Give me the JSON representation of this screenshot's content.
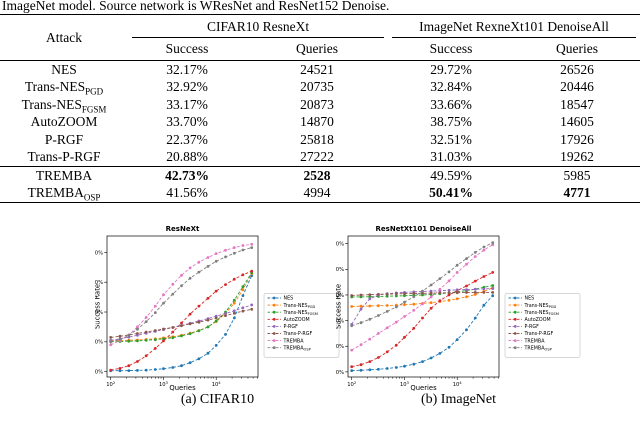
{
  "page": {
    "caption_line": "ImageNet model. Source network is WResNet and ResNet152 Denoise."
  },
  "table": {
    "attack_header": "Attack",
    "groups": [
      {
        "label": "CIFAR10 ResneXt",
        "cols": [
          "Success",
          "Queries"
        ]
      },
      {
        "label": "ImageNet RexneXt101 DenoiseAll",
        "cols": [
          "Success",
          "Queries"
        ]
      }
    ],
    "rows": [
      {
        "attack": "NES",
        "sub": "",
        "values": [
          "32.17%",
          "24521",
          "29.72%",
          "26526"
        ],
        "bold": [],
        "separator": false
      },
      {
        "attack": "Trans-NES",
        "sub": "PGD",
        "values": [
          "32.92%",
          "20735",
          "32.84%",
          "20446"
        ],
        "bold": [],
        "separator": false
      },
      {
        "attack": "Trans-NES",
        "sub": "FGSM",
        "values": [
          "33.17%",
          "20873",
          "33.66%",
          "18547"
        ],
        "bold": [],
        "separator": false
      },
      {
        "attack": "AutoZOOM",
        "sub": "",
        "values": [
          "33.70%",
          "14870",
          "38.75%",
          "14605"
        ],
        "bold": [],
        "separator": false
      },
      {
        "attack": "P-RGF",
        "sub": "",
        "values": [
          "22.37%",
          "25818",
          "32.51%",
          "17926"
        ],
        "bold": [],
        "separator": false
      },
      {
        "attack": "Trans-P-RGF",
        "sub": "",
        "values": [
          "20.88%",
          "27222",
          "31.03%",
          "19262"
        ],
        "bold": [],
        "separator": false
      },
      {
        "attack": "TREMBA",
        "sub": "",
        "values": [
          "42.73%",
          "2528",
          "49.59%",
          "5985"
        ],
        "bold": [
          0,
          1
        ],
        "separator": true
      },
      {
        "attack": "TREMBA",
        "sub": "OSP",
        "values": [
          "41.56%",
          "4994",
          "50.41%",
          "4771"
        ],
        "bold": [
          2,
          3
        ],
        "separator": false
      }
    ]
  },
  "chart_data": [
    {
      "type": "line",
      "title": "ResNeXt",
      "caption": "(a) CIFAR10",
      "xlabel": "Queries",
      "ylabel": "Success Rate",
      "x_scale": "log",
      "grid": false,
      "legend_position": "right-outside",
      "xticks": [
        100,
        1000,
        10000
      ],
      "yticks": [
        0,
        10,
        20,
        30,
        40
      ],
      "xlim": [
        85,
        62000
      ],
      "ylim": [
        -1.8,
        45.5
      ],
      "x": [
        100,
        150,
        220,
        320,
        470,
        700,
        1000,
        1500,
        2200,
        3200,
        4700,
        7000,
        10000,
        15000,
        22000,
        32000,
        47000
      ],
      "series": [
        {
          "name": "NES",
          "name_sub": "",
          "color": "#1f77b4",
          "values": [
            0.3,
            0.3,
            0.35,
            0.4,
            0.5,
            0.7,
            1.0,
            1.4,
            2.0,
            3.0,
            4.3,
            6.2,
            8.8,
            12.5,
            18.0,
            25.5,
            32.2
          ]
        },
        {
          "name": "Trans-NES",
          "name_sub": "PGD",
          "color": "#ff7f0e",
          "values": [
            10.3,
            10.4,
            10.5,
            10.6,
            10.8,
            11.0,
            11.3,
            11.7,
            12.2,
            12.9,
            13.8,
            15.0,
            16.8,
            19.5,
            23.0,
            27.5,
            32.9
          ]
        },
        {
          "name": "Trans-NES",
          "name_sub": "FGSM",
          "color": "#2ca02c",
          "values": [
            10.0,
            10.1,
            10.2,
            10.3,
            10.5,
            10.7,
            11.0,
            11.4,
            12.0,
            12.7,
            13.7,
            15.0,
            17.0,
            20.0,
            24.0,
            28.5,
            33.2
          ]
        },
        {
          "name": "AutoZOOM",
          "name_sub": "",
          "color": "#d62728",
          "values": [
            0.5,
            1.1,
            2.0,
            3.4,
            5.3,
            7.8,
            10.3,
            13.3,
            16.3,
            19.3,
            22.0,
            24.6,
            27.0,
            29.2,
            31.0,
            32.5,
            33.7
          ]
        },
        {
          "name": "P-RGF",
          "name_sub": "",
          "color": "#9467bd",
          "values": [
            10.5,
            11.0,
            11.6,
            12.2,
            12.9,
            13.5,
            14.1,
            14.8,
            15.5,
            16.2,
            17.0,
            17.8,
            18.6,
            19.5,
            20.4,
            21.4,
            22.4
          ]
        },
        {
          "name": "Trans-P-RGF",
          "name_sub": "",
          "color": "#8c564b",
          "values": [
            11.5,
            11.9,
            12.3,
            12.8,
            13.3,
            13.8,
            14.3,
            14.8,
            15.4,
            16.0,
            16.6,
            17.3,
            18.0,
            18.8,
            19.6,
            20.3,
            20.9
          ]
        },
        {
          "name": "TREMBA",
          "name_sub": "",
          "color": "#e377c2",
          "values": [
            9.0,
            10.4,
            12.3,
            15.0,
            18.2,
            22.0,
            25.8,
            29.3,
            32.3,
            34.8,
            36.7,
            38.3,
            39.6,
            40.7,
            41.6,
            42.3,
            42.7
          ]
        },
        {
          "name": "TREMBA",
          "name_sub": "OSP",
          "color": "#7f7f7f",
          "values": [
            10.0,
            10.8,
            12.2,
            14.2,
            16.8,
            19.8,
            23.0,
            26.0,
            28.8,
            31.3,
            33.4,
            35.3,
            37.0,
            38.5,
            39.7,
            40.8,
            41.6
          ]
        }
      ]
    },
    {
      "type": "line",
      "title": "ResNetXt101 DenoiseAll",
      "caption": "(b) ImageNet",
      "xlabel": "Queries",
      "ylabel": "Success Rate",
      "x_scale": "log",
      "grid": false,
      "legend_position": "right-outside",
      "xticks": [
        100,
        1000,
        10000
      ],
      "yticks": [
        0,
        10,
        20,
        30,
        40,
        50
      ],
      "xlim": [
        85,
        62000
      ],
      "ylim": [
        -2.0,
        53.0
      ],
      "x": [
        100,
        150,
        220,
        320,
        470,
        700,
        1000,
        1500,
        2200,
        3200,
        4700,
        7000,
        10000,
        15000,
        22000,
        32000,
        47000
      ],
      "series": [
        {
          "name": "NES",
          "name_sub": "",
          "color": "#1f77b4",
          "values": [
            0.5,
            0.6,
            0.8,
            1.0,
            1.3,
            1.7,
            2.2,
            3.0,
            4.0,
            5.4,
            7.2,
            9.6,
            12.6,
            16.4,
            21.0,
            26.0,
            29.7
          ]
        },
        {
          "name": "Trans-NES",
          "name_sub": "PGD",
          "color": "#ff7f0e",
          "values": [
            25.5,
            25.6,
            25.7,
            25.8,
            25.9,
            26.0,
            26.2,
            26.4,
            26.7,
            27.0,
            27.4,
            27.9,
            28.5,
            29.3,
            30.2,
            31.4,
            32.8
          ]
        },
        {
          "name": "Trans-NES",
          "name_sub": "FGSM",
          "color": "#2ca02c",
          "values": [
            29.2,
            29.25,
            29.3,
            29.4,
            29.5,
            29.6,
            29.7,
            29.85,
            30.0,
            30.2,
            30.5,
            30.8,
            31.2,
            31.7,
            32.3,
            33.0,
            33.7
          ]
        },
        {
          "name": "AutoZOOM",
          "name_sub": "",
          "color": "#d62728",
          "values": [
            2.0,
            2.8,
            4.0,
            5.6,
            7.8,
            10.4,
            13.5,
            17.0,
            21.0,
            24.8,
            27.8,
            30.0,
            31.7,
            33.5,
            35.4,
            37.2,
            38.8
          ]
        },
        {
          "name": "P-RGF",
          "name_sub": "",
          "color": "#9467bd",
          "values": [
            18.5,
            24.5,
            28.5,
            30.0,
            30.5,
            30.8,
            31.0,
            31.2,
            31.4,
            31.5,
            31.7,
            31.8,
            32.0,
            32.1,
            32.2,
            32.35,
            32.5
          ]
        },
        {
          "name": "Trans-P-RGF",
          "name_sub": "",
          "color": "#8c564b",
          "values": [
            29.8,
            30.0,
            30.1,
            30.25,
            30.35,
            30.45,
            30.5,
            30.6,
            30.65,
            30.7,
            30.8,
            30.85,
            30.9,
            30.95,
            31.0,
            31.0,
            31.0
          ]
        },
        {
          "name": "TREMBA",
          "name_sub": "",
          "color": "#e377c2",
          "values": [
            8.5,
            10.6,
            12.8,
            15.0,
            17.2,
            19.4,
            21.6,
            24.0,
            26.5,
            29.2,
            32.2,
            35.5,
            38.8,
            42.0,
            45.0,
            47.5,
            49.6
          ]
        },
        {
          "name": "TREMBA",
          "name_sub": "OSP",
          "color": "#7f7f7f",
          "values": [
            18.0,
            19.2,
            20.5,
            22.0,
            23.6,
            25.3,
            27.2,
            29.3,
            31.5,
            33.9,
            36.4,
            39.0,
            41.6,
            44.2,
            46.6,
            48.7,
            50.4
          ]
        }
      ]
    }
  ]
}
